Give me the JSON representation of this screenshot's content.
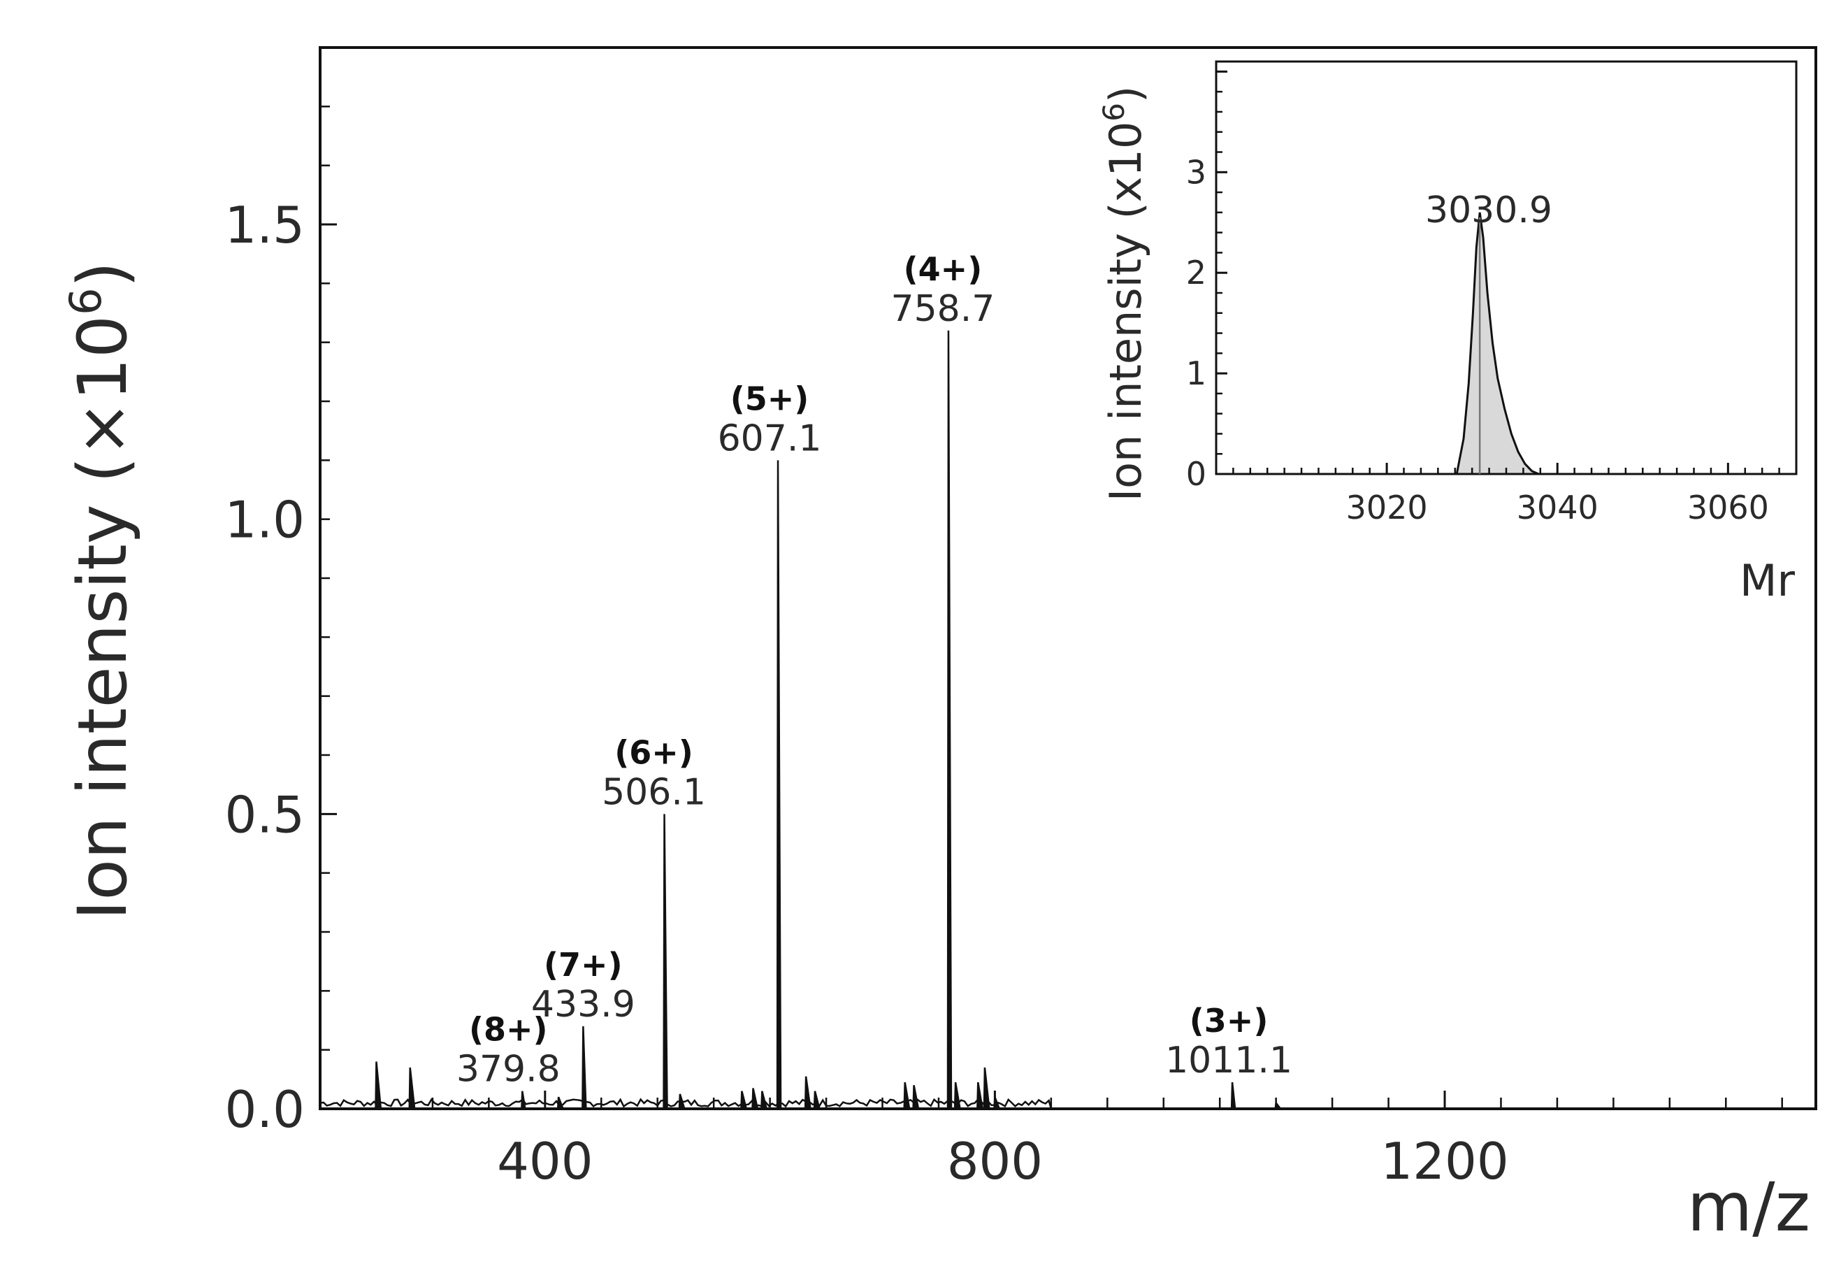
{
  "chart_data": [
    {
      "type": "line",
      "subtype": "mass-spectrum",
      "title": "",
      "xlabel": "m/z",
      "ylabel": "Ion intensity  (×10",
      "ylabel_exp": "6",
      "ylabel_suffix": ")",
      "xlim": [
        200,
        1530
      ],
      "ylim": [
        0,
        1.8
      ],
      "xticks": [
        400,
        800,
        1200
      ],
      "xtick_labels": [
        "400",
        "800",
        "1200"
      ],
      "yticks": [
        0.0,
        0.5,
        1.0,
        1.5
      ],
      "ytick_labels": [
        "0.0",
        "0.5",
        "1.0",
        "1.5"
      ],
      "grid": false,
      "labeled_peaks": [
        {
          "charge": "(8+)",
          "mz": 379.8,
          "mz_label": "379.8",
          "intensity": 0.03
        },
        {
          "charge": "(7+)",
          "mz": 433.9,
          "mz_label": "433.9",
          "intensity": 0.14
        },
        {
          "charge": "(6+)",
          "mz": 506.1,
          "mz_label": "506.1",
          "intensity": 0.5
        },
        {
          "charge": "(5+)",
          "mz": 607.1,
          "mz_label": "607.1",
          "intensity": 1.1
        },
        {
          "charge": "(4+)",
          "mz": 758.7,
          "mz_label": "758.7",
          "intensity": 1.32
        },
        {
          "charge": "(3+)",
          "mz": 1011.1,
          "mz_label": "1011.1",
          "intensity": 0.045
        }
      ],
      "minor_peaks": [
        {
          "mz": 250,
          "intensity": 0.08
        },
        {
          "mz": 280,
          "intensity": 0.07
        },
        {
          "mz": 412,
          "intensity": 0.02
        },
        {
          "mz": 520,
          "intensity": 0.025
        },
        {
          "mz": 575,
          "intensity": 0.03
        },
        {
          "mz": 585,
          "intensity": 0.035
        },
        {
          "mz": 593,
          "intensity": 0.03
        },
        {
          "mz": 632,
          "intensity": 0.055
        },
        {
          "mz": 640,
          "intensity": 0.03
        },
        {
          "mz": 720,
          "intensity": 0.045
        },
        {
          "mz": 728,
          "intensity": 0.04
        },
        {
          "mz": 765,
          "intensity": 0.045
        },
        {
          "mz": 785,
          "intensity": 0.045
        },
        {
          "mz": 791,
          "intensity": 0.07
        },
        {
          "mz": 800,
          "intensity": 0.02
        },
        {
          "mz": 1050,
          "intensity": 0.01
        }
      ]
    },
    {
      "type": "area",
      "subtype": "deconvoluted-mass-inset",
      "xlabel": "Mr",
      "ylabel": "Ion intensity (x10",
      "ylabel_exp": "6",
      "ylabel_suffix": ")",
      "xlim": [
        3000,
        3068
      ],
      "ylim": [
        0,
        4.1
      ],
      "xticks": [
        3020,
        3040,
        3060
      ],
      "xtick_labels": [
        "3020",
        "3040",
        "3060"
      ],
      "yticks": [
        0,
        1,
        2,
        3
      ],
      "ytick_labels": [
        "0",
        "1",
        "2",
        "3"
      ],
      "peak_label": "3030.9",
      "peak_x": 3030.9,
      "x": [
        3028.2,
        3029.0,
        3029.6,
        3030.1,
        3030.5,
        3030.9,
        3031.3,
        3031.8,
        3032.4,
        3033.0,
        3033.8,
        3034.6,
        3035.4,
        3036.2,
        3037.0,
        3037.8
      ],
      "y": [
        0.0,
        0.35,
        0.9,
        1.6,
        2.25,
        2.6,
        2.35,
        1.8,
        1.3,
        0.95,
        0.65,
        0.4,
        0.22,
        0.1,
        0.03,
        0.0
      ],
      "fill_color": "#d9d9d9"
    }
  ]
}
